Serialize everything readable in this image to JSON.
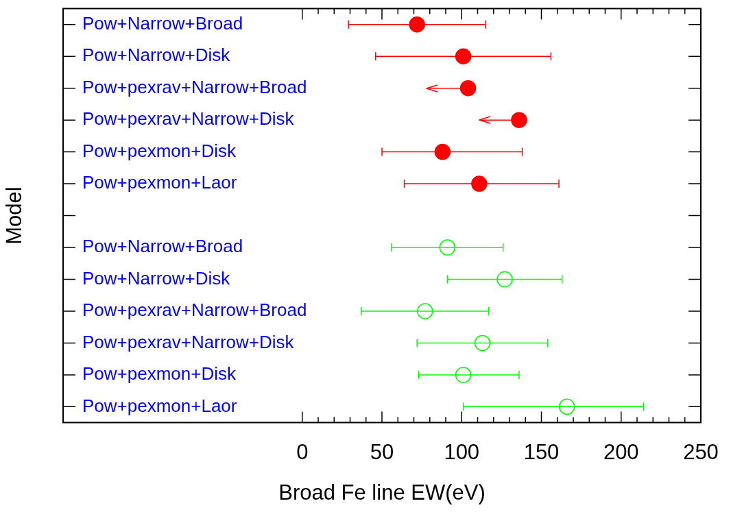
{
  "chart_data": {
    "type": "scatter",
    "xlabel": "Broad Fe line EW(eV)",
    "ylabel": "Model",
    "categories": [
      "Pow+Narrow+Broad",
      "Pow+Narrow+Disk",
      "Pow+pexrav+Narrow+Broad",
      "Pow+pexrav+Narrow+Disk",
      "Pow+pexmon+Disk",
      "Pow+pexmon+Laor",
      null,
      "Pow+Narrow+Broad",
      "Pow+Narrow+Disk",
      "Pow+pexrav+Narrow+Broad",
      "Pow+pexrav+Narrow+Disk",
      "Pow+pexmon+Disk",
      "Pow+pexmon+Laor"
    ],
    "series": [
      {
        "color": "#ff0000",
        "values": [
          72,
          101,
          104,
          136,
          88,
          111,
          null,
          null,
          null,
          null,
          null,
          null,
          null
        ],
        "errors": [
          [
            29,
            115
          ],
          [
            46,
            156
          ],
          [
            78,
            104
          ],
          [
            111,
            136
          ],
          [
            50,
            138
          ],
          [
            64,
            161
          ],
          null,
          null,
          null,
          null,
          null,
          null,
          null
        ]
      },
      {
        "color": "#00ff00",
        "values": [
          null,
          null,
          null,
          null,
          null,
          null,
          null,
          91,
          127,
          77,
          113,
          101,
          166
        ],
        "errors": [
          null,
          null,
          null,
          null,
          null,
          null,
          null,
          [
            56,
            126
          ],
          [
            91,
            163
          ],
          [
            37,
            117
          ],
          [
            72,
            154
          ],
          [
            73,
            136
          ],
          [
            101,
            214
          ]
        ]
      }
    ],
    "xlim": [
      -150,
      250
    ],
    "xticks": [
      0,
      {
        "value": 10,
        "label": null
      },
      {
        "value": 20,
        "label": null
      },
      {
        "value": 30,
        "label": null
      },
      {
        "value": 40,
        "label": null
      },
      50,
      {
        "value": 60,
        "label": null
      },
      {
        "value": 70,
        "label": null
      },
      {
        "value": 80,
        "label": null
      },
      {
        "value": 90,
        "label": null
      },
      100,
      {
        "value": 110,
        "label": null
      },
      {
        "value": 120,
        "label": null
      },
      {
        "value": 130,
        "label": null
      },
      {
        "value": 140,
        "label": null
      },
      150,
      {
        "value": 160,
        "label": null
      },
      {
        "value": 170,
        "label": null
      },
      {
        "value": 180,
        "label": null
      },
      {
        "value": 190,
        "label": null
      },
      200,
      {
        "value": 210,
        "label": null
      },
      {
        "value": 220,
        "label": null
      },
      {
        "value": 230,
        "label": null
      },
      {
        "value": 240,
        "label": null
      },
      250
    ],
    "orientation": "horizontal",
    "marker": "circle",
    "grid": false,
    "legend": false
  }
}
